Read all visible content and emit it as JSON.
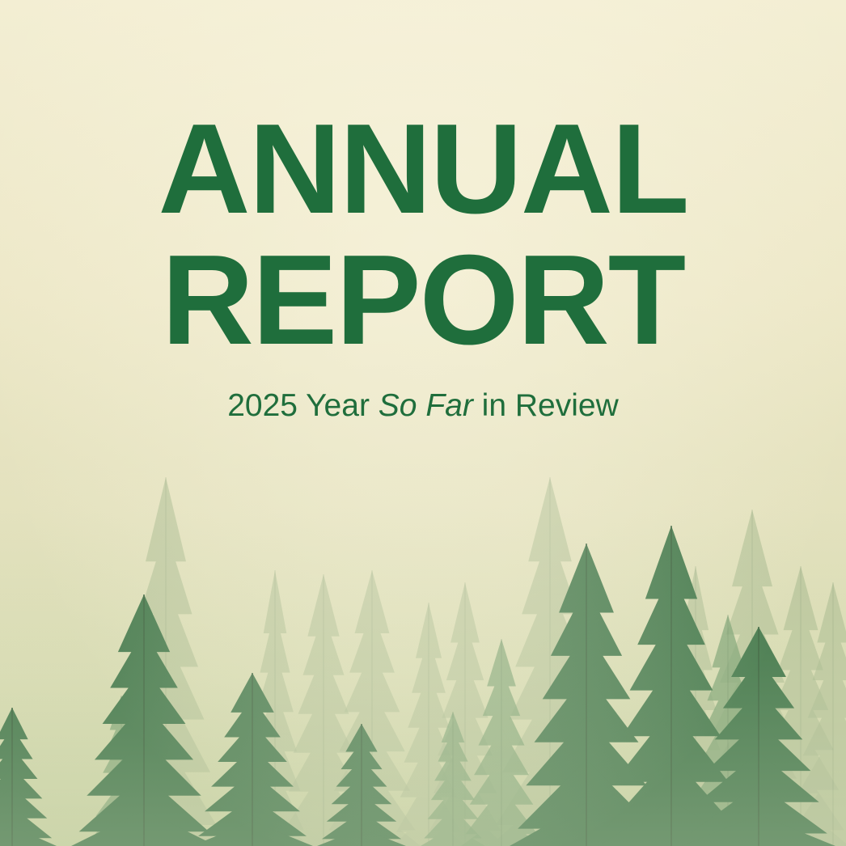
{
  "title": {
    "line1": "ANNUAL",
    "line2": "REPORT"
  },
  "subtitle": {
    "before": "2025 Year",
    "emphasis": "So Far",
    "after": "in Review"
  },
  "colors": {
    "title_green": "#1f6e3c",
    "background": "#ede8c8",
    "tree_dark": "#2f6b3c",
    "tree_misty": "#9fb487"
  },
  "image": {
    "subject": "misty-conifer-forest"
  }
}
